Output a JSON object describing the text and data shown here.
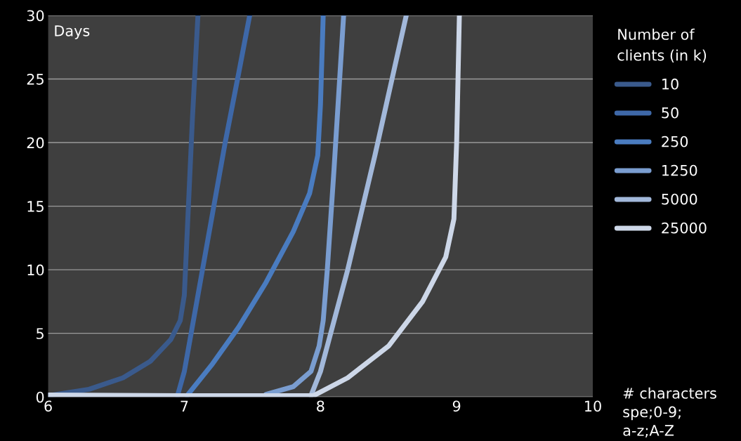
{
  "chart_data": {
    "type": "line",
    "ylabel": "Days",
    "legend_title": "Number of\nclients (in k)",
    "annotations": [
      "# characters\nspe;0-9;\na-z;A-Z"
    ],
    "xlim": [
      6,
      10
    ],
    "xticks": [
      6,
      7,
      8,
      9,
      10
    ],
    "ylim": [
      0,
      30
    ],
    "yticks": [
      0,
      5,
      10,
      15,
      20,
      25,
      30
    ],
    "grid": "y",
    "legend": "right",
    "marker": "none",
    "line_style": "solid",
    "series": [
      {
        "name": "10",
        "color": "#3a5a8c",
        "x": [
          6.0,
          6.3,
          6.55,
          6.75,
          6.9,
          6.97,
          7.0,
          7.03,
          7.06,
          7.1
        ],
        "values": [
          0.1,
          0.6,
          1.5,
          2.8,
          4.5,
          6,
          8,
          15,
          22,
          30
        ]
      },
      {
        "name": "50",
        "color": "#3e68a8",
        "x": [
          6.95,
          7.0,
          7.1,
          7.2,
          7.3,
          7.4,
          7.48
        ],
        "values": [
          0.1,
          2,
          8,
          14,
          20,
          25.5,
          30
        ]
      },
      {
        "name": "250",
        "color": "#4a7cc0",
        "x": [
          7.02,
          7.2,
          7.4,
          7.6,
          7.8,
          7.92,
          7.98,
          8.0,
          8.02
        ],
        "values": [
          0.1,
          2.5,
          5.5,
          9,
          13,
          16,
          19,
          23,
          30
        ]
      },
      {
        "name": "1250",
        "color": "#7a9dd0",
        "x": [
          7.6,
          7.8,
          7.93,
          7.99,
          8.02,
          8.05,
          8.1,
          8.17
        ],
        "values": [
          0.2,
          0.8,
          2,
          4,
          6,
          10,
          18,
          30
        ]
      },
      {
        "name": "5000",
        "color": "#a2b8da",
        "x": [
          7.93,
          8.0,
          8.2,
          8.4,
          8.63
        ],
        "values": [
          0.1,
          2,
          10,
          19,
          30
        ]
      },
      {
        "name": "25000",
        "color": "#cdd7e8",
        "x": [
          6.0,
          7.0,
          7.95,
          8.2,
          8.5,
          8.75,
          8.92,
          8.98,
          9.0,
          9.02
        ],
        "values": [
          0.15,
          0.1,
          0.1,
          1.5,
          4,
          7.5,
          11,
          14,
          20,
          30
        ]
      }
    ]
  }
}
